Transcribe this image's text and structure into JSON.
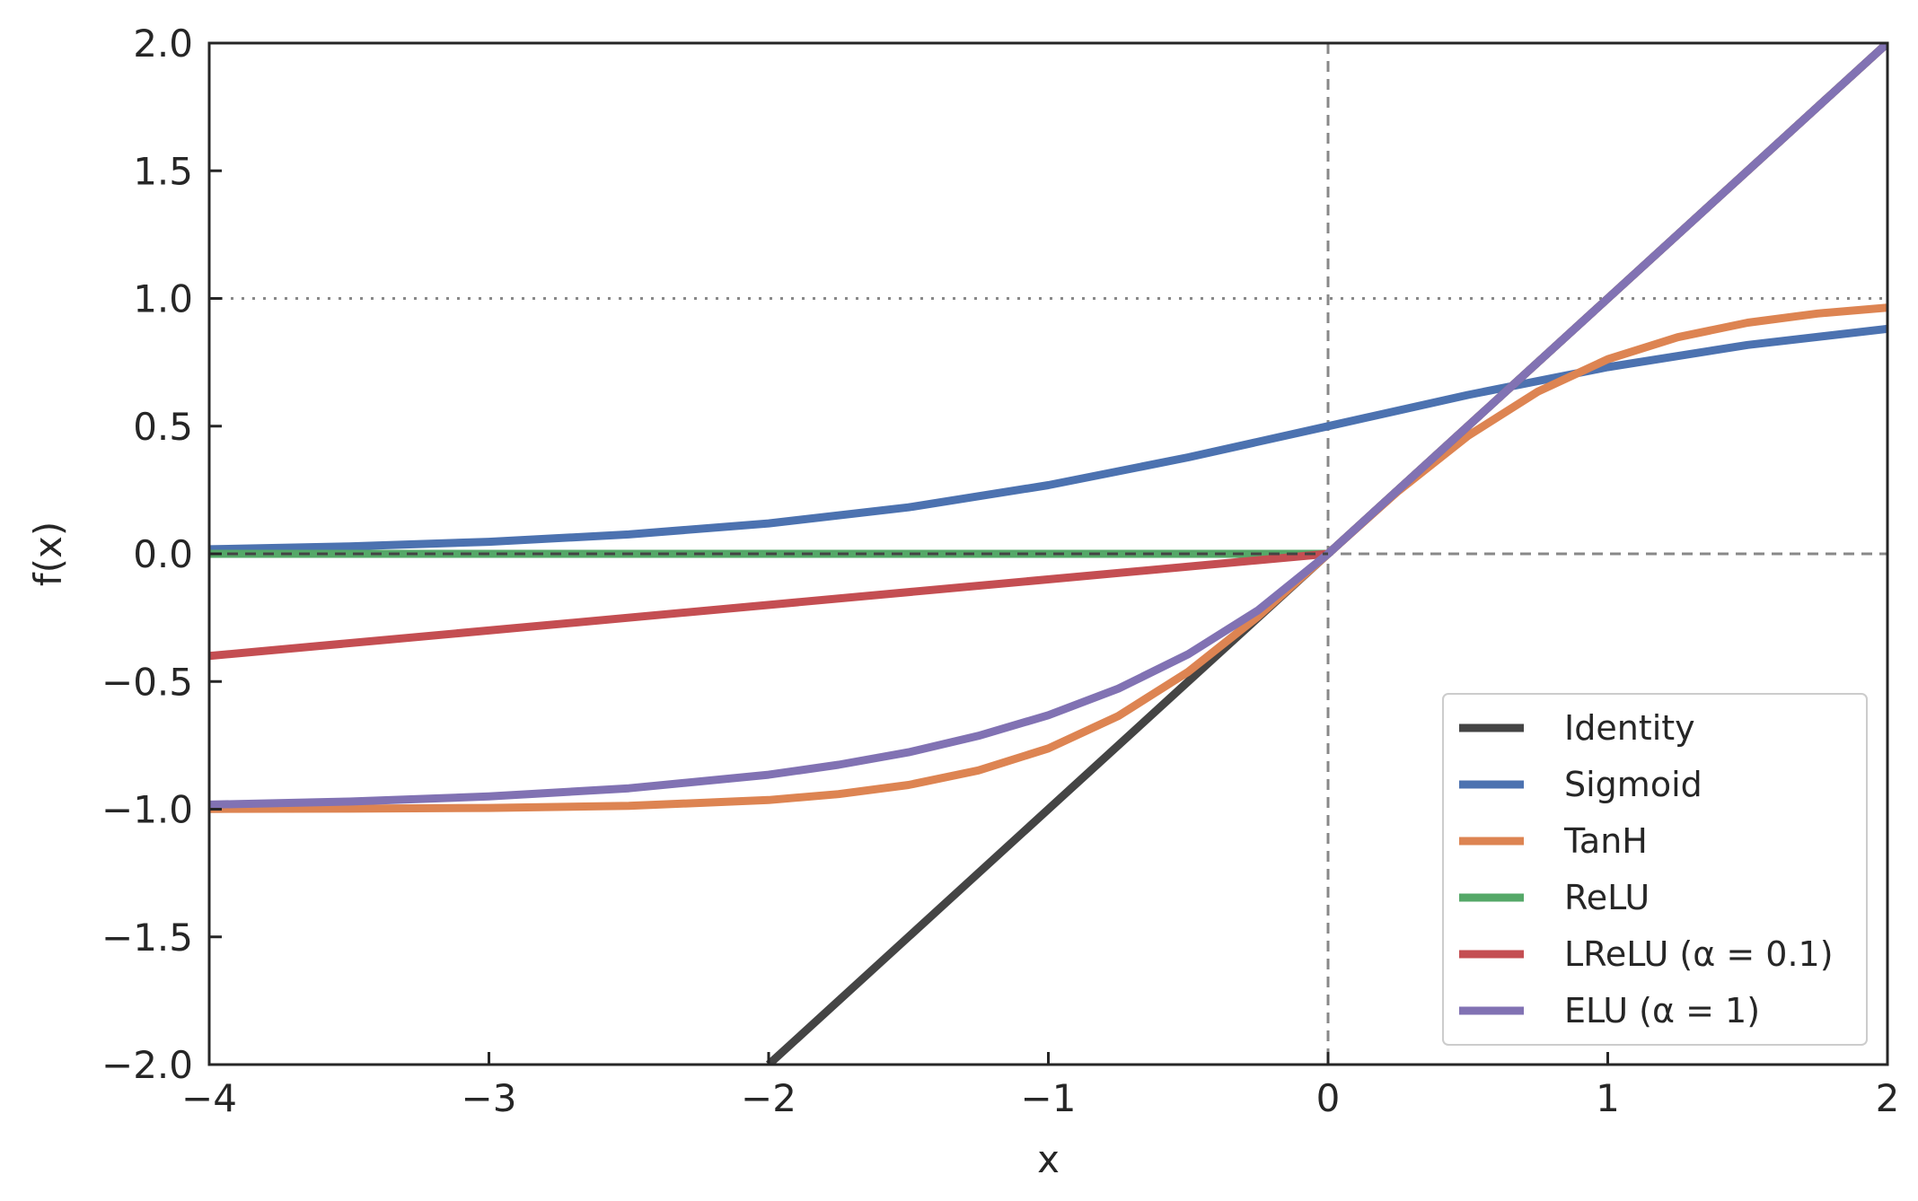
{
  "chart_data": {
    "type": "line",
    "xlabel": "x",
    "ylabel": "f(x)",
    "xlim": [
      -4,
      2
    ],
    "ylim": [
      -2,
      2
    ],
    "x_ticks": [
      {
        "value": -4,
        "label": "−4"
      },
      {
        "value": -3,
        "label": "−3"
      },
      {
        "value": -2,
        "label": "−2"
      },
      {
        "value": -1,
        "label": "−1"
      },
      {
        "value": 0,
        "label": "0"
      },
      {
        "value": 1,
        "label": "1"
      },
      {
        "value": 2,
        "label": "2"
      }
    ],
    "y_ticks": [
      {
        "value": -2.0,
        "label": "−2.0"
      },
      {
        "value": -1.5,
        "label": "−1.5"
      },
      {
        "value": -1.0,
        "label": "−1.0"
      },
      {
        "value": -0.5,
        "label": "−0.5"
      },
      {
        "value": 0.0,
        "label": "0.0"
      },
      {
        "value": 0.5,
        "label": "0.5"
      },
      {
        "value": 1.0,
        "label": "1.0"
      },
      {
        "value": 1.5,
        "label": "1.5"
      },
      {
        "value": 2.0,
        "label": "2.0"
      }
    ],
    "reference_lines": [
      {
        "orientation": "horizontal",
        "value": 1.0,
        "style": "dotted",
        "color": "#888888"
      },
      {
        "orientation": "horizontal",
        "value": 0.0,
        "style": "dashed",
        "color": "#888888"
      },
      {
        "orientation": "vertical",
        "value": 0.0,
        "style": "dashed",
        "color": "#888888"
      }
    ],
    "grid": false,
    "legend_position": "bottom-right",
    "series": [
      {
        "name": "Identity",
        "color": "#444444",
        "x": [
          -2.0,
          2.0
        ],
        "y": [
          -2.0,
          2.0
        ]
      },
      {
        "name": "Sigmoid",
        "color": "#4c72b0",
        "x": [
          -4.0,
          -3.5,
          -3.0,
          -2.5,
          -2.0,
          -1.5,
          -1.0,
          -0.5,
          0.0,
          0.5,
          1.0,
          1.5,
          2.0
        ],
        "y": [
          0.018,
          0.029,
          0.047,
          0.076,
          0.119,
          0.182,
          0.269,
          0.378,
          0.5,
          0.622,
          0.731,
          0.818,
          0.881
        ]
      },
      {
        "name": "TanH",
        "color": "#dd8452",
        "x": [
          -4.0,
          -3.5,
          -3.0,
          -2.5,
          -2.0,
          -1.75,
          -1.5,
          -1.25,
          -1.0,
          -0.75,
          -0.5,
          -0.25,
          0.0,
          0.25,
          0.5,
          0.75,
          1.0,
          1.25,
          1.5,
          1.75,
          2.0
        ],
        "y": [
          -0.999,
          -0.998,
          -0.995,
          -0.987,
          -0.964,
          -0.941,
          -0.905,
          -0.848,
          -0.762,
          -0.635,
          -0.462,
          -0.245,
          0.0,
          0.245,
          0.462,
          0.635,
          0.762,
          0.848,
          0.905,
          0.941,
          0.964
        ]
      },
      {
        "name": "ReLU",
        "color": "#55a868",
        "x": [
          -4.0,
          0.0,
          2.0
        ],
        "y": [
          0.0,
          0.0,
          2.0
        ]
      },
      {
        "name": "LReLU (α = 0.1)",
        "color": "#c44e52",
        "x": [
          -4.0,
          0.0,
          2.0
        ],
        "y": [
          -0.4,
          0.0,
          2.0
        ]
      },
      {
        "name": "ELU (α = 1)",
        "color": "#8172b3",
        "x": [
          -4.0,
          -3.5,
          -3.0,
          -2.5,
          -2.0,
          -1.75,
          -1.5,
          -1.25,
          -1.0,
          -0.75,
          -0.5,
          -0.25,
          0.0,
          2.0
        ],
        "y": [
          -0.982,
          -0.97,
          -0.95,
          -0.918,
          -0.865,
          -0.826,
          -0.777,
          -0.713,
          -0.632,
          -0.528,
          -0.393,
          -0.221,
          0.0,
          2.0
        ]
      }
    ]
  }
}
